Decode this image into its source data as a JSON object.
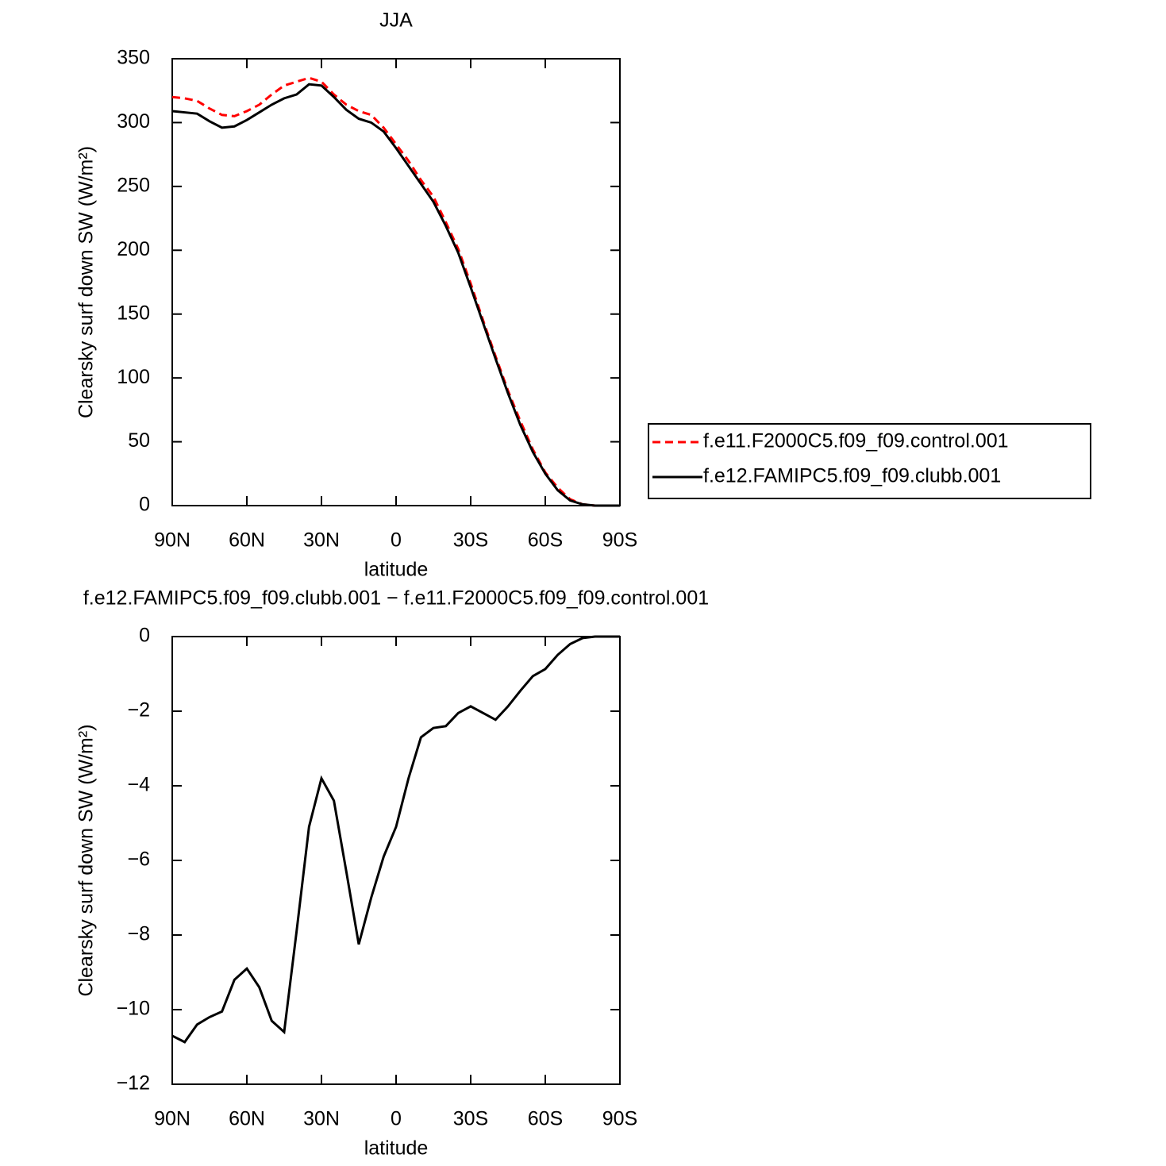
{
  "chart_data": [
    {
      "type": "line",
      "title": "JJA",
      "xlabel": "latitude",
      "ylabel": "Clearsky surf down SW (W/m²)",
      "x": [
        90,
        85,
        80,
        75,
        70,
        65,
        60,
        55,
        50,
        45,
        40,
        35,
        30,
        25,
        20,
        15,
        10,
        5,
        0,
        -5,
        -10,
        -15,
        -20,
        -25,
        -30,
        -35,
        -40,
        -45,
        -50,
        -55,
        -60,
        -65,
        -70,
        -75,
        -80,
        -85,
        -90
      ],
      "series": [
        {
          "name": "f.e11.F2000C5.f09_f09.control.001",
          "color": "#ff0000",
          "line_style": "dashed",
          "values": [
            320,
            319,
            317,
            311,
            306,
            305,
            309,
            314,
            322,
            329,
            332,
            335,
            332,
            322,
            314,
            309,
            306,
            296,
            283,
            270,
            255,
            242,
            222,
            201,
            174,
            145,
            117,
            90,
            66,
            44,
            26,
            14,
            5,
            1,
            0,
            0,
            0
          ]
        },
        {
          "name": "f.e12.FAMIPC5.f09_f09.clubb.001",
          "color": "#000000",
          "line_style": "solid",
          "values": [
            309,
            308,
            307,
            301,
            296,
            297,
            302,
            308,
            314,
            319,
            322,
            330,
            329,
            320,
            310,
            303,
            300,
            293,
            280,
            266,
            252,
            238,
            219,
            198,
            171,
            143,
            115,
            88,
            63,
            42,
            25,
            12,
            4,
            1,
            0,
            0,
            0
          ]
        }
      ],
      "xlim": [
        90,
        -90
      ],
      "xticks": [
        {
          "value": 90,
          "label": "90N"
        },
        {
          "value": 60,
          "label": "60N"
        },
        {
          "value": 30,
          "label": "30N"
        },
        0,
        {
          "value": -30,
          "label": "30S"
        },
        {
          "value": -60,
          "label": "60S"
        },
        {
          "value": -90,
          "label": "90S"
        }
      ],
      "ylim": [
        0,
        350
      ],
      "yticks": [
        0,
        50,
        100,
        150,
        200,
        250,
        300,
        350
      ],
      "legend": "right"
    },
    {
      "type": "line",
      "title": "f.e12.FAMIPC5.f09_f09.clubb.001 − f.e11.F2000C5.f09_f09.control.001",
      "xlabel": "latitude",
      "ylabel": "Clearsky surf down SW (W/m²)",
      "x": [
        90,
        85,
        80,
        75,
        70,
        65,
        60,
        55,
        50,
        45,
        40,
        35,
        30,
        25,
        20,
        15,
        10,
        5,
        0,
        -5,
        -10,
        -15,
        -20,
        -25,
        -30,
        -35,
        -40,
        -45,
        -50,
        -55,
        -60,
        -65,
        -70,
        -75,
        -80,
        -85,
        -90
      ],
      "values": [
        -10.7,
        -10.87,
        -10.4,
        -10.2,
        -10.05,
        -9.2,
        -8.9,
        -9.4,
        -10.3,
        -10.6,
        -7.9,
        -5.1,
        -3.8,
        -4.4,
        -6.3,
        -8.25,
        -7.0,
        -5.9,
        -5.1,
        -3.8,
        -2.7,
        -2.45,
        -2.4,
        -2.05,
        -1.87,
        -2.05,
        -2.23,
        -1.87,
        -1.45,
        -1.06,
        -0.87,
        -0.49,
        -0.2,
        -0.04,
        0,
        0,
        0
      ],
      "color": "#000000",
      "line_style": "solid",
      "xlim": [
        90,
        -90
      ],
      "xticks": [
        {
          "value": 90,
          "label": "90N"
        },
        {
          "value": 60,
          "label": "60N"
        },
        {
          "value": 30,
          "label": "30N"
        },
        0,
        {
          "value": -30,
          "label": "30S"
        },
        {
          "value": -60,
          "label": "60S"
        },
        {
          "value": -90,
          "label": "90S"
        }
      ],
      "ylim": [
        -12,
        0
      ],
      "yticks": [
        {
          "value": -12,
          "label": "−12"
        },
        {
          "value": -10,
          "label": "−10"
        },
        {
          "value": -8,
          "label": "−8"
        },
        {
          "value": -6,
          "label": "−6"
        },
        {
          "value": -4,
          "label": "−4"
        },
        {
          "value": -2,
          "label": "−2"
        },
        0
      ]
    }
  ]
}
